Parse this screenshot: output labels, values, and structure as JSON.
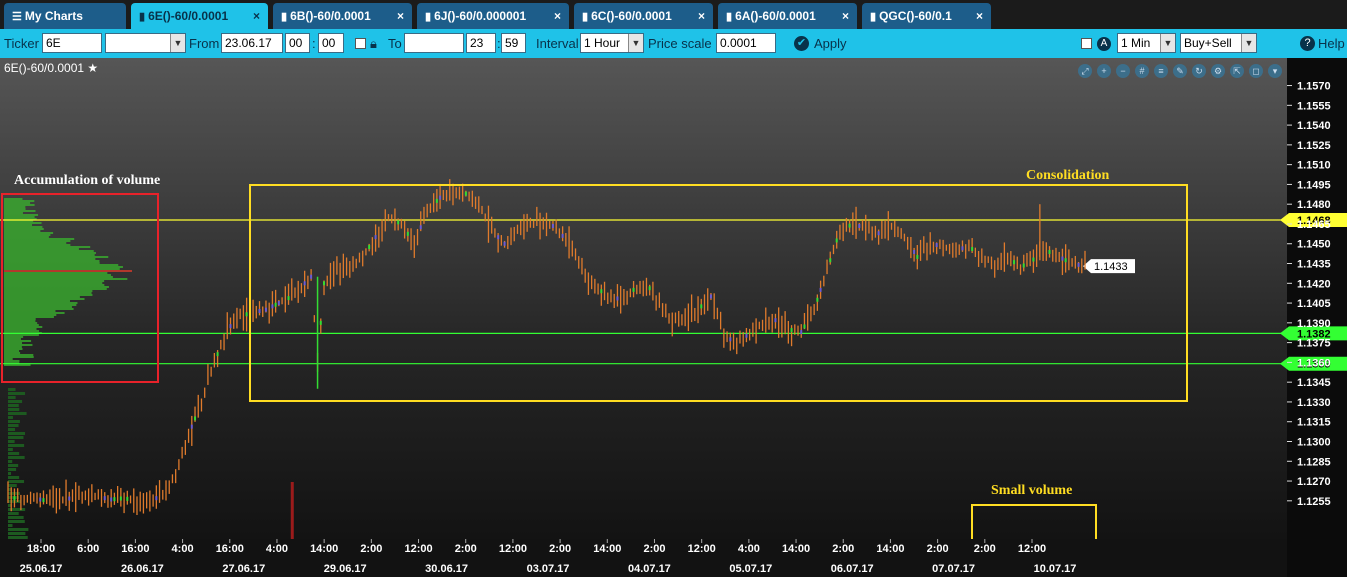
{
  "tabs": [
    {
      "label": "My Charts",
      "icon": "menu-icon",
      "active": false
    },
    {
      "label": "6E()-60/0.0001",
      "icon": "bar-chart-icon",
      "active": true
    },
    {
      "label": "6B()-60/0.0001",
      "icon": "bar-chart-icon",
      "active": false
    },
    {
      "label": "6J()-60/0.000001",
      "icon": "bar-chart-icon",
      "active": false
    },
    {
      "label": "6C()-60/0.0001",
      "icon": "bar-chart-icon",
      "active": false
    },
    {
      "label": "6A()-60/0.0001",
      "icon": "bar-chart-icon",
      "active": false
    },
    {
      "label": "QGC()-60/0.1",
      "icon": "bar-chart-icon",
      "active": false
    }
  ],
  "close_symbol": "×",
  "toolbar": {
    "ticker_label": "Ticker",
    "ticker_value": "6E",
    "from_label": "From",
    "from_date": "23.06.17",
    "from_hour": "00",
    "from_min": "00",
    "to_label": "To",
    "to_date": "",
    "to_hour": "23",
    "to_min": "59",
    "time_sep": ":",
    "interval_label": "Interval",
    "interval_value": "1 Hour",
    "price_scale_label": "Price scale",
    "price_scale_value": "0.0001",
    "apply_label": "Apply",
    "timeframe_value": "1 Min",
    "side_value": "Buy+Sell",
    "help_label": "Help"
  },
  "chart_title": "6E()-60/0.0001",
  "colors": {
    "toolbar": "#1fc2e8",
    "bar_main": "#e07b2c",
    "up_tick": "#33dd33",
    "down_tick": "#6b5bd6",
    "volume": "#1f6e22",
    "profile": "#39b52e",
    "resistance": "#ffff33",
    "support": "#33ff33",
    "box_yellow": "#ffdd22",
    "box_red": "#e8222a"
  },
  "chart_data": {
    "type": "bar",
    "subtype": "ohlc_hourly_with_volume_profile",
    "y_ticks": [
      "1.1570",
      "1.1555",
      "1.1540",
      "1.1525",
      "1.1510",
      "1.1495",
      "1.1480",
      "1.1465",
      "1.1450",
      "1.1435",
      "1.1420",
      "1.1405",
      "1.1390",
      "1.1375",
      "1.1360",
      "1.1345",
      "1.1330",
      "1.1315",
      "1.1300",
      "1.1285",
      "1.1270",
      "1.1255"
    ],
    "ylim": [
      1.1245,
      1.1578
    ],
    "x_time_ticks": [
      "18:00",
      "6:00",
      "16:00",
      "4:00",
      "16:00",
      "4:00",
      "14:00",
      "2:00",
      "12:00",
      "2:00",
      "12:00",
      "2:00",
      "14:00",
      "2:00",
      "12:00",
      "4:00",
      "14:00",
      "2:00",
      "14:00",
      "2:00",
      "2:00",
      "12:00"
    ],
    "x_date_ticks": [
      "25.06.17",
      "26.06.17",
      "27.06.17",
      "29.06.17",
      "30.06.17",
      "03.07.17",
      "04.07.17",
      "05.07.17",
      "06.07.17",
      "07.07.17",
      "10.07.17"
    ],
    "x_range_hours": [
      0,
      260
    ],
    "series": [
      {
        "values": [
          [
            0,
            1.1258
          ],
          [
            4,
            1.1256
          ],
          [
            8,
            1.1257
          ],
          [
            12,
            1.1255
          ],
          [
            16,
            1.1256
          ],
          [
            20,
            1.1257
          ],
          [
            24,
            1.126
          ],
          [
            28,
            1.1258
          ],
          [
            32,
            1.1256
          ],
          [
            36,
            1.1257
          ],
          [
            40,
            1.1255
          ],
          [
            44,
            1.1256
          ],
          [
            48,
            1.1258
          ],
          [
            52,
            1.1275
          ],
          [
            56,
            1.1305
          ],
          [
            60,
            1.133
          ],
          [
            64,
            1.136
          ],
          [
            68,
            1.1385
          ],
          [
            72,
            1.1395
          ],
          [
            76,
            1.1398
          ],
          [
            80,
            1.14
          ],
          [
            84,
            1.1405
          ],
          [
            88,
            1.141
          ],
          [
            92,
            1.142
          ],
          [
            94,
            1.1425
          ],
          [
            96,
            1.136
          ],
          [
            98,
            1.142
          ],
          [
            102,
            1.143
          ],
          [
            106,
            1.1432
          ],
          [
            110,
            1.144
          ],
          [
            114,
            1.1455
          ],
          [
            118,
            1.147
          ],
          [
            122,
            1.1465
          ],
          [
            126,
            1.145
          ],
          [
            130,
            1.1475
          ],
          [
            134,
            1.1485
          ],
          [
            138,
            1.149
          ],
          [
            142,
            1.1488
          ],
          [
            146,
            1.148
          ],
          [
            150,
            1.146
          ],
          [
            154,
            1.145
          ],
          [
            158,
            1.146
          ],
          [
            162,
            1.1465
          ],
          [
            166,
            1.1468
          ],
          [
            170,
            1.1462
          ],
          [
            174,
            1.145
          ],
          [
            178,
            1.143
          ],
          [
            182,
            1.1418
          ],
          [
            186,
            1.141
          ],
          [
            190,
            1.1408
          ],
          [
            194,
            1.1415
          ],
          [
            198,
            1.142
          ],
          [
            202,
            1.1405
          ],
          [
            206,
            1.1392
          ],
          [
            210,
            1.1395
          ],
          [
            214,
            1.14
          ],
          [
            218,
            1.141
          ],
          [
            222,
            1.138
          ],
          [
            226,
            1.1375
          ],
          [
            230,
            1.1382
          ],
          [
            234,
            1.139
          ],
          [
            238,
            1.1392
          ],
          [
            242,
            1.1385
          ],
          [
            246,
            1.1383
          ],
          [
            250,
            1.14
          ],
          [
            254,
            1.143
          ],
          [
            258,
            1.146
          ]
        ]
      }
    ],
    "series_b_values": [
      [
        258,
        1.146
      ],
      [
        262,
        1.1465
      ],
      [
        266,
        1.1462
      ],
      [
        270,
        1.1458
      ],
      [
        274,
        1.1463
      ],
      [
        278,
        1.1455
      ],
      [
        282,
        1.144
      ],
      [
        286,
        1.145
      ],
      [
        290,
        1.1448
      ],
      [
        294,
        1.1445
      ],
      [
        298,
        1.1448
      ],
      [
        302,
        1.144
      ],
      [
        306,
        1.1435
      ],
      [
        310,
        1.144
      ],
      [
        314,
        1.1432
      ],
      [
        318,
        1.1438
      ],
      [
        322,
        1.1445
      ],
      [
        326,
        1.144
      ],
      [
        330,
        1.1435
      ],
      [
        334,
        1.1433
      ]
    ],
    "last_price": "1.1433",
    "level_labels": {
      "resistance": "1.1468",
      "support_upper": "1.1382",
      "support_lower": "1.1359"
    },
    "annotations": {
      "accumulation": "Accumulation of volume",
      "consolidation": "Consolidation",
      "small_volume": "Small volume"
    }
  }
}
